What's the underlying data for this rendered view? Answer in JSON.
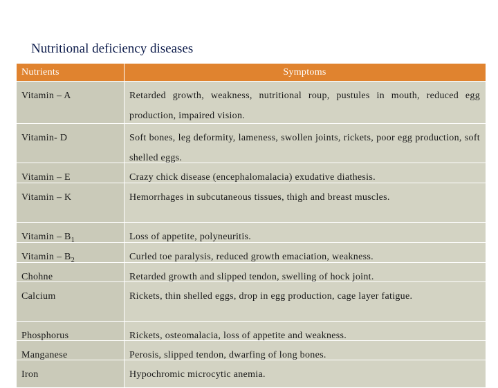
{
  "title": "Nutritional deficiency diseases",
  "table": {
    "header": [
      "Nutrients",
      "Symptoms"
    ],
    "rows": [
      [
        "Vitamin – A",
        "Retarded growth, weakness, nutritional roup, pustules in mouth, reduced egg production, impaired vision."
      ],
      [
        "Vitamin- D",
        "Soft bones, leg deformity, lameness, swollen joints, rickets, poor egg production, soft shelled eggs."
      ],
      [
        "Vitamin – E",
        "Crazy chick disease (encephalomalacia) exudative diathesis."
      ],
      [
        "Vitamin – K",
        "Hemorrhages in subcutaneous tissues, thigh and breast muscles."
      ],
      [
        {
          "text": "Vitamin – B",
          "sub": "1"
        },
        "Loss of appetite, polyneuritis."
      ],
      [
        {
          "text": "Vitamin – B",
          "sub": "2"
        },
        "Curled toe paralysis, reduced growth emaciation, weakness."
      ],
      [
        "Chohne",
        "Retarded growth and slipped tendon, swelling of hock joint."
      ],
      [
        "Calcium",
        "Rickets, thin shelled eggs, drop in egg production, cage layer fatigue."
      ],
      [
        "Phosphorus",
        "Rickets, osteomalacia, loss of appetite and weakness."
      ],
      [
        "Manganese",
        "Perosis, slipped tendon, dwarfing of long bones."
      ],
      [
        "Iron",
        "Hypochromic microcytic anemia."
      ]
    ]
  }
}
